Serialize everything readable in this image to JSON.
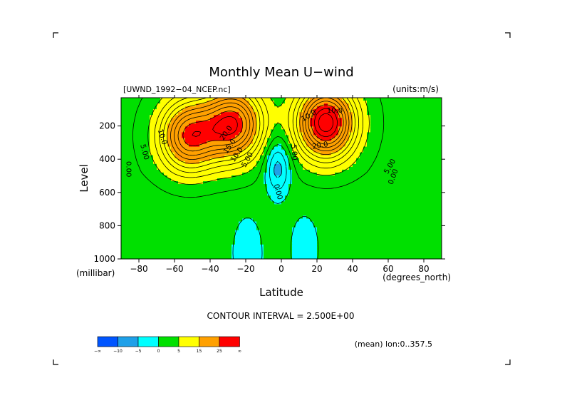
{
  "chart_data": {
    "type": "heatmap",
    "title": "Monthly Mean U−wind",
    "file_label": "[UWND_1992−04_NCEP.nc]",
    "units_label": "(units:m/s)",
    "xlabel": "Latitude",
    "x_unit_label": "(degrees_north)",
    "ylabel": "Level",
    "y_unit_label": "(millibar)",
    "xlim": [
      -90,
      90
    ],
    "ylim": [
      1000,
      30
    ],
    "x_ticks": [
      -80,
      -60,
      -40,
      -20,
      0,
      20,
      40,
      60,
      80
    ],
    "x_tick_labels": [
      "−80",
      "−60",
      "−40",
      "−20",
      "0",
      "20",
      "40",
      "60",
      "80"
    ],
    "y_ticks": [
      200,
      400,
      600,
      800,
      1000
    ],
    "y_tick_labels": [
      "200",
      "400",
      "600",
      "800",
      "1000"
    ],
    "contour_interval_label": "CONTOUR INTERVAL = 2.500E+00",
    "contour_interval": 2.5,
    "mean_label": "(mean) lon:0..357.5",
    "contour_labels": [
      "10.0",
      "5.00",
      "0.00",
      "20.0",
      "15.0",
      "10.0",
      "5.00",
      "0.00",
      "5.00",
      "10.0",
      "20.0",
      "10.0",
      "5.00",
      "0.00"
    ],
    "features": [
      {
        "type": "westerly_jet",
        "lat": -27,
        "level": 190,
        "peak": 27
      },
      {
        "type": "westerly_jet",
        "lat": -52,
        "level": 260,
        "peak": 25
      },
      {
        "type": "westerly_jet",
        "lat": 25,
        "level": 180,
        "peak": 32
      },
      {
        "type": "easterly_core",
        "lat": -2,
        "level": 450,
        "peak": -8
      },
      {
        "type": "easterly_core",
        "lat": -19,
        "level": 960,
        "peak": -7
      },
      {
        "type": "easterly_core",
        "lat": 13,
        "level": 940,
        "peak": -6
      }
    ],
    "colorbar": {
      "colors": [
        "#0055ff",
        "#1fa0e8",
        "#00ffff",
        "#00e000",
        "#ffff00",
        "#ffa000",
        "#ff0000"
      ],
      "tick_labels": [
        "−∞",
        "−10",
        "−5",
        "0",
        "5",
        "15",
        "25",
        "∞"
      ]
    }
  }
}
